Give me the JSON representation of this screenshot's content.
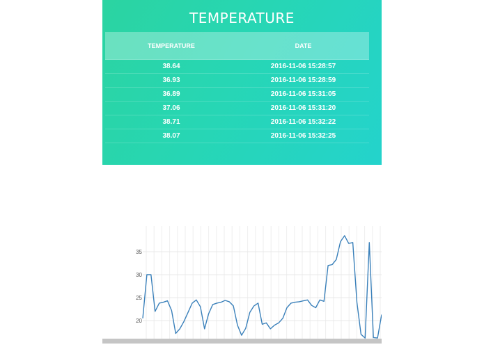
{
  "panel": {
    "title": "TEMPERATURE",
    "columns": [
      "TEMPERATURE",
      "DATE"
    ],
    "rows": [
      {
        "temperature": "38.64",
        "date": "2016-11-06 15:28:57"
      },
      {
        "temperature": "36.93",
        "date": "2016-11-06 15:28:59"
      },
      {
        "temperature": "36.89",
        "date": "2016-11-06 15:31:05"
      },
      {
        "temperature": "37.06",
        "date": "2016-11-06 15:31:20"
      },
      {
        "temperature": "38.71",
        "date": "2016-11-06 15:32:22"
      },
      {
        "temperature": "38.07",
        "date": "2016-11-06 15:32:25"
      }
    ],
    "colors": {
      "gradient_start": "#2bd4a1",
      "gradient_end": "#24d3cc",
      "text": "#ffffff"
    }
  },
  "chart_data": {
    "type": "line",
    "title": "",
    "xlabel": "",
    "ylabel": "",
    "y_ticks": [
      "20",
      "25",
      "30",
      "35"
    ],
    "ylim": [
      15.5,
      40.5
    ],
    "grid": true,
    "line_color": "#3a80ba",
    "values": [
      20.5,
      30,
      30,
      22,
      23.8,
      24,
      24.3,
      22.2,
      17.2,
      18.2,
      19.8,
      21.8,
      23.8,
      24.5,
      23,
      18.2,
      21.5,
      23.5,
      23.8,
      24,
      24.4,
      24.1,
      23.2,
      19,
      16.8,
      18.3,
      21.8,
      23.2,
      23.8,
      19.2,
      19.5,
      18.2,
      19,
      19.5,
      20.5,
      22.8,
      23.8,
      24,
      24.1,
      24.3,
      24.5,
      23.3,
      22.8,
      24.5,
      24.2,
      32,
      32.2,
      33.3,
      37.2,
      38.5,
      36.8,
      37,
      24,
      17,
      16.2,
      37,
      16.3,
      16.2,
      21.3
    ]
  }
}
